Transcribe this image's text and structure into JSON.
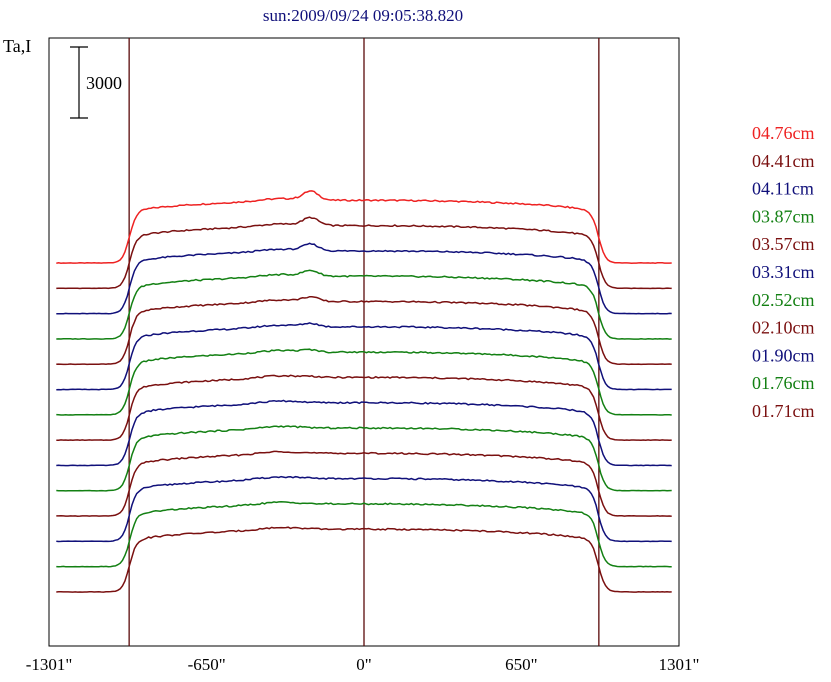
{
  "chart_data": {
    "type": "line",
    "title": "sun:2009/09/24 09:05:38.820",
    "ylabel": "Ta,I",
    "scale_bar_label": "3000",
    "scale_bar_value": 3000,
    "x_ticks": [
      {
        "value": -1301,
        "label": "-1301\""
      },
      {
        "value": -650,
        "label": "-650\""
      },
      {
        "value": 0,
        "label": "0\""
      },
      {
        "value": 650,
        "label": "650\""
      },
      {
        "value": 1301,
        "label": "1301\""
      }
    ],
    "xlim": [
      -1301,
      1301
    ],
    "vertical_lines": [
      -970,
      0,
      970
    ],
    "grid": false,
    "legend_position": "right",
    "series": [
      {
        "name": "04.76cm",
        "color": "#ee2222"
      },
      {
        "name": "04.41cm",
        "color": "#7a1010"
      },
      {
        "name": "04.11cm",
        "color": "#10107a"
      },
      {
        "name": "03.87cm",
        "color": "#138013"
      },
      {
        "name": "03.57cm",
        "color": "#7a1010"
      },
      {
        "name": "03.31cm",
        "color": "#10107a"
      },
      {
        "name": "02.52cm",
        "color": "#138013"
      },
      {
        "name": "02.10cm",
        "color": "#7a1010"
      },
      {
        "name": "01.90cm",
        "color": "#10107a"
      },
      {
        "name": "01.76cm",
        "color": "#138013"
      },
      {
        "name": "01.71cm",
        "color": "#7a1010"
      }
    ],
    "extra_profile_colors": [
      "#10107a",
      "#138013",
      "#7a1010"
    ]
  }
}
